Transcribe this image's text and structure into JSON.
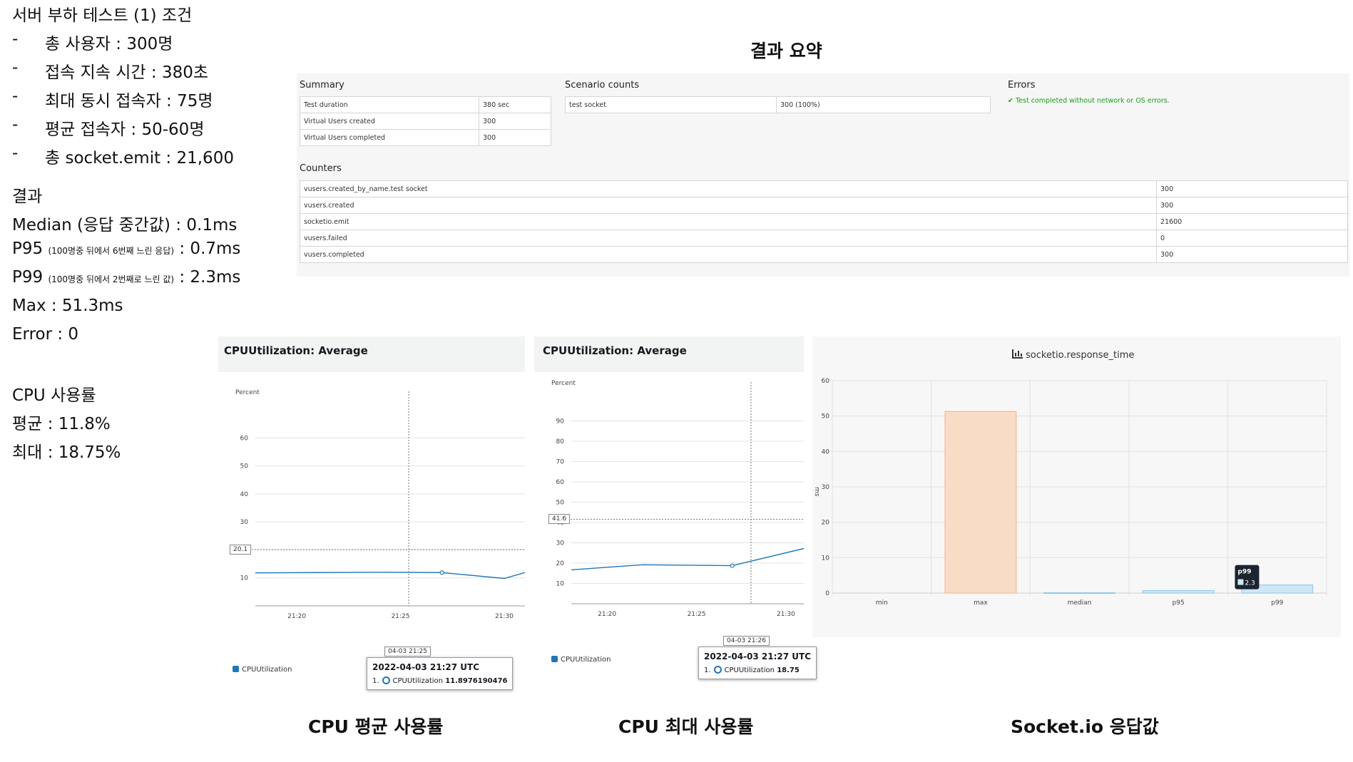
{
  "notes": {
    "title": "서버 부하 테스트 (1) 조건",
    "conditions": [
      {
        "dash": "-",
        "text": "총 사용자 : 300명"
      },
      {
        "dash": "-",
        "text": "접속 지속 시간 : 380초"
      },
      {
        "dash": "-",
        "text": "최대 동시 접속자 : 75명"
      },
      {
        "dash": "-",
        "text": "평균 접속자 : 50-60명"
      },
      {
        "dash": "-",
        "text": "총 socket.emit : 21,600"
      }
    ],
    "result_title": "결과",
    "median": "Median (응답 중간값) : 0.1ms",
    "p95_label": "P95",
    "p95_note": "(100명중 뒤에서 6번째 느린 응답)",
    "p95_value": ": 0.7ms",
    "p99_label": "P99",
    "p99_note": "(100명중 뒤에서 2번째로 느린 값)",
    "p99_value": ": 2.3ms",
    "max": "Max : 51.3ms",
    "error": "Error : 0",
    "cpu_title": "CPU 사용률",
    "cpu_avg": "평균 : 11.8%",
    "cpu_max": "최대 : 18.75%"
  },
  "heading": "결과 요약",
  "report": {
    "summary_title": "Summary",
    "summary_rows": [
      [
        "Test duration",
        "380 sec"
      ],
      [
        "Virtual Users created",
        "300"
      ],
      [
        "Virtual Users completed",
        "300"
      ]
    ],
    "scenario_title": "Scenario counts",
    "scenario_rows": [
      [
        "test socket",
        "300 (100%)"
      ]
    ],
    "errors_title": "Errors",
    "errors_text": "✔ Test completed without network or OS errors.",
    "counters_title": "Counters",
    "counter_rows": [
      [
        "vusers.created_by_name.test socket",
        "300"
      ],
      [
        "vusers.created",
        "300"
      ],
      [
        "socketio.emit",
        "21600"
      ],
      [
        "vusers.failed",
        "0"
      ],
      [
        "vusers.completed",
        "300"
      ]
    ]
  },
  "panels": {
    "avg": {
      "title": "CPUUtilization: Average",
      "unit": "Percent",
      "marker": "20.1",
      "cursor_label": "04-03 21:25",
      "legend": "CPUUtilization",
      "tooltip_time": "2022-04-03 21:27 UTC",
      "tooltip_index": "1.",
      "tooltip_metric": "CPUUtilization",
      "tooltip_value": "11.8976190476",
      "caption": "CPU 평균 사용률"
    },
    "max": {
      "title": "CPUUtilization: Average",
      "unit": "Percent",
      "marker": "41.6",
      "cursor_label": "04-03 21:26",
      "legend": "CPUUtilization",
      "tooltip_time": "2022-04-03 21:27 UTC",
      "tooltip_index": "1.",
      "tooltip_metric": "CPUUtilization",
      "tooltip_value": "18.75",
      "caption": "CPU 최대 사용률"
    },
    "socket": {
      "title": "socketio.response_time",
      "tooltip_label": "p99",
      "tooltip_value": "2.3",
      "caption": "Socket.io 응답값",
      "ylabel": "ms"
    }
  },
  "colors": {
    "line": "#1f77b4",
    "bar_max": "#f9dcc6",
    "bar_max_border": "#f2b184",
    "bar_p": "#cde7f7",
    "bar_p_border": "#8fc7ea",
    "ok": "#1a9e1a"
  },
  "chart_data": [
    {
      "type": "line",
      "title": "CPUUtilization: Average",
      "ylabel": "Percent",
      "x": [
        "21:18",
        "21:21",
        "21:24",
        "21:27",
        "21:30",
        "21:31"
      ],
      "x_ticks": [
        "21:20",
        "21:25",
        "21:30"
      ],
      "series": [
        {
          "name": "CPUUtilization",
          "values": [
            11.8,
            11.9,
            12.0,
            11.9,
            9.8,
            11.9
          ]
        }
      ],
      "y_ticks": [
        10,
        20,
        30,
        40,
        50,
        60
      ],
      "ylim": [
        0,
        70
      ]
    },
    {
      "type": "line",
      "title": "CPUUtilization: Average",
      "ylabel": "Percent",
      "x": [
        "21:18",
        "21:22",
        "21:27",
        "21:31"
      ],
      "x_ticks": [
        "21:20",
        "21:25",
        "21:30"
      ],
      "series": [
        {
          "name": "CPUUtilization",
          "values": [
            16.7,
            19.2,
            18.75,
            27.2
          ]
        }
      ],
      "y_ticks": [
        10,
        20,
        30,
        40,
        50,
        60,
        70,
        80,
        90
      ],
      "ylim": [
        0,
        100
      ]
    },
    {
      "type": "bar",
      "title": "socketio.response_time",
      "categories": [
        "min",
        "max",
        "median",
        "p95",
        "p99"
      ],
      "values": [
        0,
        51.3,
        0.1,
        0.7,
        2.3
      ],
      "ylabel": "ms",
      "y_ticks": [
        0,
        10,
        20,
        30,
        40,
        50,
        60
      ],
      "ylim": [
        0,
        60
      ]
    }
  ]
}
